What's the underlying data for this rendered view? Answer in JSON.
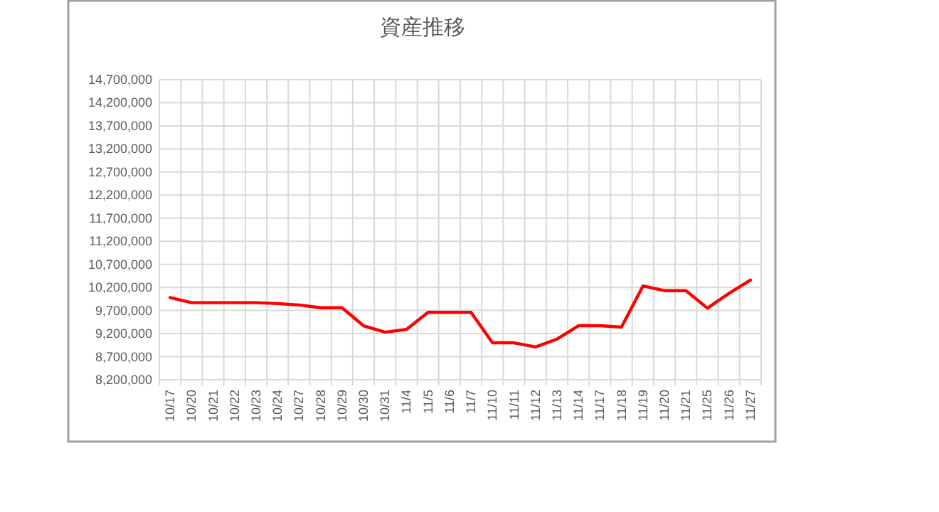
{
  "chart_data": {
    "type": "line",
    "title": "資産推移",
    "categories": [
      "10/17",
      "10/20",
      "10/21",
      "10/22",
      "10/23",
      "10/24",
      "10/27",
      "10/28",
      "10/29",
      "10/30",
      "10/31",
      "11/4",
      "11/5",
      "11/6",
      "11/7",
      "11/10",
      "11/11",
      "11/12",
      "11/13",
      "11/14",
      "11/17",
      "11/18",
      "11/19",
      "11/20",
      "11/21",
      "11/25",
      "11/26",
      "11/27"
    ],
    "series": [
      {
        "color": "#ff0000",
        "values": [
          9980000,
          9870000,
          9870000,
          9870000,
          9870000,
          9850000,
          9820000,
          9760000,
          9760000,
          9370000,
          9230000,
          9290000,
          9660000,
          9660000,
          9660000,
          9000000,
          9000000,
          8910000,
          9080000,
          9370000,
          9370000,
          9340000,
          10230000,
          10130000,
          10130000,
          9750000,
          10070000,
          10360000
        ]
      }
    ],
    "ylim": [
      8200000,
      14700000
    ],
    "yticks": [
      {
        "value": 8200000,
        "label": "8,200,000"
      },
      {
        "value": 8700000,
        "label": "8,700,000"
      },
      {
        "value": 9200000,
        "label": "9,200,000"
      },
      {
        "value": 9700000,
        "label": "9,700,000"
      },
      {
        "value": 10200000,
        "label": "10,200,000"
      },
      {
        "value": 10700000,
        "label": "10,700,000"
      },
      {
        "value": 11200000,
        "label": "11,200,000"
      },
      {
        "value": 11700000,
        "label": "11,700,000"
      },
      {
        "value": 12200000,
        "label": "12,200,000"
      },
      {
        "value": 12700000,
        "label": "12,700,000"
      },
      {
        "value": 13200000,
        "label": "13,200,000"
      },
      {
        "value": 13700000,
        "label": "13,700,000"
      },
      {
        "value": 14200000,
        "label": "14,200,000"
      },
      {
        "value": 14700000,
        "label": "14,700,000"
      }
    ],
    "grid": true,
    "marker": "none",
    "line_style": "solid"
  }
}
